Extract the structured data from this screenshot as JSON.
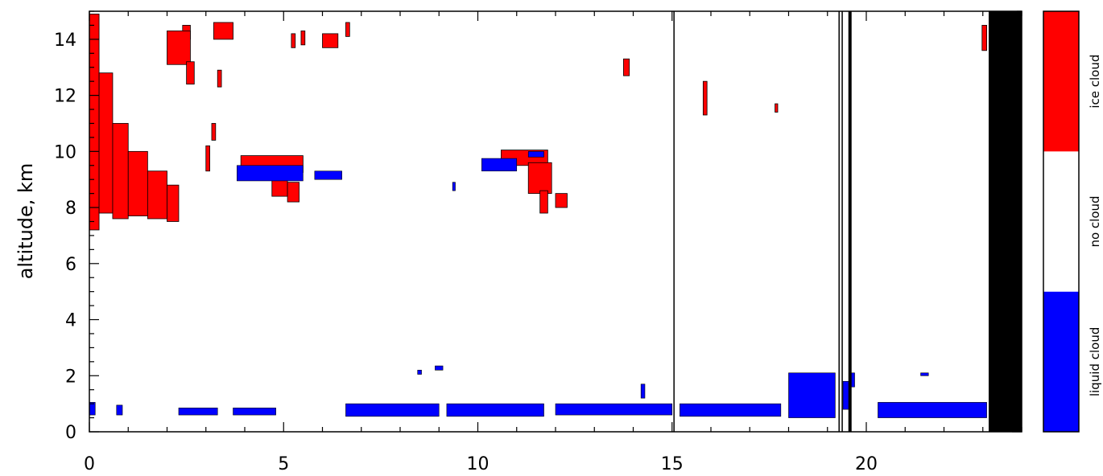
{
  "chart_data": {
    "type": "heatmap",
    "ylabel": "altitude, km",
    "xlim": [
      0,
      24
    ],
    "ylim": [
      0,
      15
    ],
    "xticks": [
      "0",
      "5",
      "10",
      "15",
      "20"
    ],
    "yticks": [
      "0",
      "2",
      "4",
      "6",
      "8",
      "10",
      "12",
      "14"
    ],
    "colors": {
      "ice_cloud": "#ff0000",
      "no_cloud": "#ffffff",
      "liquid_cloud": "#0000ff",
      "missing": "#000000"
    },
    "colorbar": [
      {
        "label": "liquid cloud",
        "color": "#0000ff"
      },
      {
        "label": "no cloud",
        "color": "#ffffff"
      },
      {
        "label": "ice cloud",
        "color": "#ff0000"
      }
    ],
    "vertical_lines": [
      15.05,
      19.3,
      19.38,
      19.58
    ],
    "missing_region": [
      23.15,
      24
    ],
    "ice_regions": [
      {
        "x0": 0,
        "x1": 0.25,
        "y0": 7.2,
        "y1": 14.9
      },
      {
        "x0": 0.25,
        "x1": 0.6,
        "y0": 7.8,
        "y1": 12.8
      },
      {
        "x0": 0.6,
        "x1": 1.0,
        "y0": 7.6,
        "y1": 11.0
      },
      {
        "x0": 1.0,
        "x1": 1.5,
        "y0": 7.7,
        "y1": 10.0
      },
      {
        "x0": 1.5,
        "x1": 2.0,
        "y0": 7.6,
        "y1": 9.3
      },
      {
        "x0": 2.0,
        "x1": 2.3,
        "y0": 7.5,
        "y1": 8.8
      },
      {
        "x0": 3.2,
        "x1": 3.7,
        "y0": 14.0,
        "y1": 14.6
      },
      {
        "x0": 2.4,
        "x1": 2.6,
        "y0": 14.0,
        "y1": 14.5
      },
      {
        "x0": 2.0,
        "x1": 2.6,
        "y0": 13.1,
        "y1": 14.3
      },
      {
        "x0": 2.5,
        "x1": 2.7,
        "y0": 12.4,
        "y1": 13.2
      },
      {
        "x0": 3.3,
        "x1": 3.4,
        "y0": 12.3,
        "y1": 12.9
      },
      {
        "x0": 3.15,
        "x1": 3.25,
        "y0": 10.4,
        "y1": 11.0
      },
      {
        "x0": 3.0,
        "x1": 3.1,
        "y0": 9.3,
        "y1": 10.2
      },
      {
        "x0": 5.2,
        "x1": 5.3,
        "y0": 13.7,
        "y1": 14.2
      },
      {
        "x0": 5.45,
        "x1": 5.55,
        "y0": 13.8,
        "y1": 14.3
      },
      {
        "x0": 6.0,
        "x1": 6.4,
        "y0": 13.7,
        "y1": 14.2
      },
      {
        "x0": 6.6,
        "x1": 6.7,
        "y0": 14.1,
        "y1": 14.6
      },
      {
        "x0": 3.9,
        "x1": 5.5,
        "y0": 9.25,
        "y1": 9.85
      },
      {
        "x0": 4.7,
        "x1": 5.1,
        "y0": 8.4,
        "y1": 9.4
      },
      {
        "x0": 5.1,
        "x1": 5.4,
        "y0": 8.2,
        "y1": 8.9
      },
      {
        "x0": 10.6,
        "x1": 11.8,
        "y0": 9.5,
        "y1": 10.05
      },
      {
        "x0": 11.3,
        "x1": 11.9,
        "y0": 8.5,
        "y1": 9.6
      },
      {
        "x0": 11.6,
        "x1": 11.8,
        "y0": 7.8,
        "y1": 8.6
      },
      {
        "x0": 12.0,
        "x1": 12.3,
        "y0": 8.0,
        "y1": 8.5
      },
      {
        "x0": 13.75,
        "x1": 13.9,
        "y0": 12.7,
        "y1": 13.3
      },
      {
        "x0": 15.8,
        "x1": 15.9,
        "y0": 11.3,
        "y1": 12.5
      },
      {
        "x0": 17.65,
        "x1": 17.72,
        "y0": 11.4,
        "y1": 11.7
      },
      {
        "x0": 22.98,
        "x1": 23.1,
        "y0": 13.6,
        "y1": 14.5
      }
    ],
    "liquid_regions": [
      {
        "x0": 3.8,
        "x1": 5.5,
        "y0": 8.95,
        "y1": 9.5
      },
      {
        "x0": 5.8,
        "x1": 6.5,
        "y0": 9.0,
        "y1": 9.3
      },
      {
        "x0": 10.1,
        "x1": 11.0,
        "y0": 9.3,
        "y1": 9.75
      },
      {
        "x0": 11.3,
        "x1": 11.7,
        "y0": 9.8,
        "y1": 10.0
      },
      {
        "x0": 9.35,
        "x1": 9.42,
        "y0": 8.6,
        "y1": 8.9
      },
      {
        "x0": 8.45,
        "x1": 8.55,
        "y0": 2.05,
        "y1": 2.2
      },
      {
        "x0": 8.9,
        "x1": 9.1,
        "y0": 2.2,
        "y1": 2.35
      },
      {
        "x0": 21.4,
        "x1": 21.6,
        "y0": 2.0,
        "y1": 2.1
      },
      {
        "x0": 14.2,
        "x1": 14.3,
        "y0": 1.2,
        "y1": 1.7
      },
      {
        "x0": 0.0,
        "x1": 0.15,
        "y0": 0.6,
        "y1": 1.05
      },
      {
        "x0": 0.7,
        "x1": 0.85,
        "y0": 0.6,
        "y1": 0.95
      },
      {
        "x0": 2.3,
        "x1": 3.3,
        "y0": 0.6,
        "y1": 0.85
      },
      {
        "x0": 3.7,
        "x1": 4.8,
        "y0": 0.6,
        "y1": 0.85
      },
      {
        "x0": 6.6,
        "x1": 9.0,
        "y0": 0.55,
        "y1": 1.0
      },
      {
        "x0": 9.2,
        "x1": 11.7,
        "y0": 0.55,
        "y1": 1.0
      },
      {
        "x0": 12.0,
        "x1": 15.0,
        "y0": 0.6,
        "y1": 1.0
      },
      {
        "x0": 15.2,
        "x1": 17.8,
        "y0": 0.55,
        "y1": 1.0
      },
      {
        "x0": 18.0,
        "x1": 19.2,
        "y0": 0.5,
        "y1": 2.1
      },
      {
        "x0": 19.4,
        "x1": 19.55,
        "y0": 0.8,
        "y1": 1.8
      },
      {
        "x0": 19.6,
        "x1": 19.7,
        "y0": 1.6,
        "y1": 2.1
      },
      {
        "x0": 20.3,
        "x1": 23.1,
        "y0": 0.5,
        "y1": 1.05
      }
    ]
  }
}
